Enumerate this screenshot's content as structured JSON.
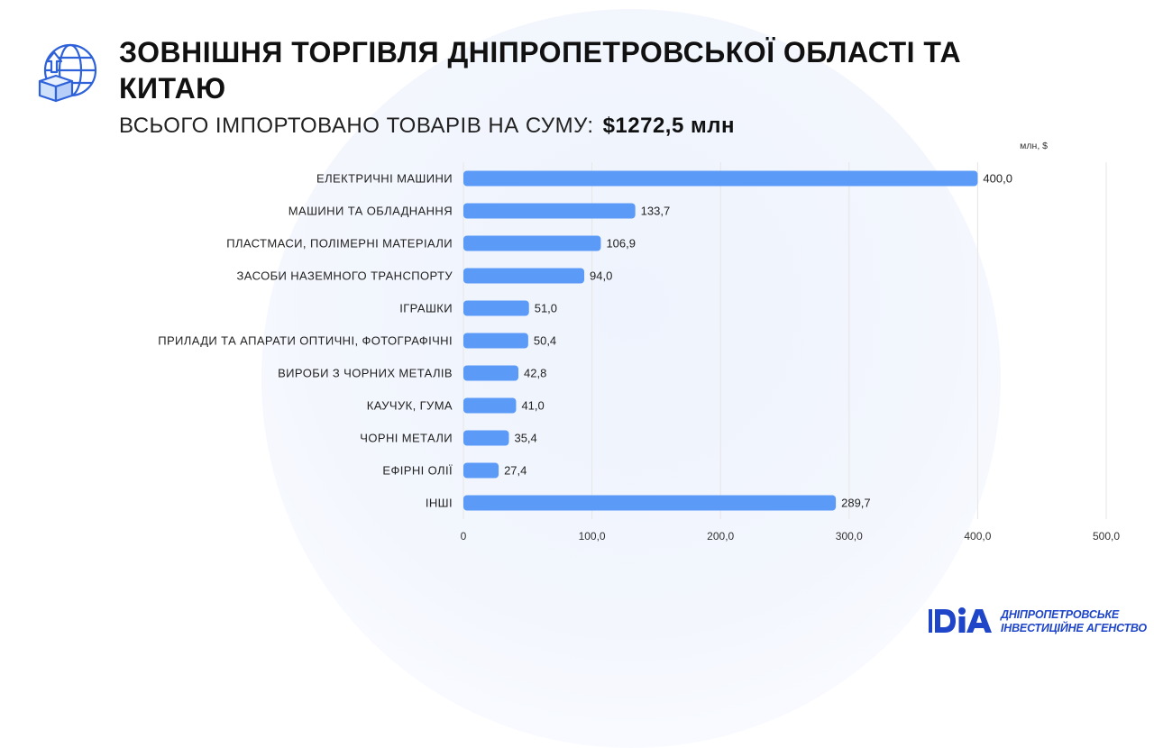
{
  "header": {
    "title": "ЗОВНІШНЯ ТОРГІВЛЯ ДНІПРОПЕТРОВСЬКОЇ ОБЛАСТІ ТА КИТАЮ",
    "subtitle_label": "ВСЬОГО ІМПОРТОВАНО ТОВАРІВ НА СУМУ:",
    "subtitle_value": "$1272,5 млн",
    "icon": "globe-box-upload-icon"
  },
  "brand": {
    "logo_text": "DIA",
    "name_line1": "ДНІПРОПЕТРОВСЬКЕ",
    "name_line2": "ІНВЕСТИЦІЙНЕ АГЕНСТВО"
  },
  "colors": {
    "bar": "#5b9af7",
    "brand": "#1f45c8",
    "grid": "#e6e6e6"
  },
  "chart_data": {
    "type": "bar",
    "orientation": "horizontal",
    "unit_label": "млн, $",
    "categories": [
      "ЕЛЕКТРИЧНІ МАШИНИ",
      "МАШИНИ ТА ОБЛАДНАННЯ",
      "ПЛАСТМАСИ, ПОЛІМЕРНІ МАТЕРІАЛИ",
      "ЗАСОБИ НАЗЕМНОГО ТРАНСПОРТУ",
      "ІГРАШКИ",
      "ПРИЛАДИ ТА АПАРАТИ ОПТИЧНІ, ФОТОГРАФІЧНІ",
      "ВИРОБИ З ЧОРНИХ МЕТАЛІВ",
      "КАУЧУК, ГУМА",
      "ЧОРНІ МЕТАЛИ",
      "ЕФІРНІ ОЛІЇ",
      "ІНШІ"
    ],
    "values": [
      400.0,
      133.7,
      106.9,
      94.0,
      51.0,
      50.4,
      42.8,
      41.0,
      35.4,
      27.4,
      289.7
    ],
    "value_labels": [
      "400,0",
      "133,7",
      "106,9",
      "94,0",
      "51,0",
      "50,4",
      "42,8",
      "41,0",
      "35,4",
      "27,4",
      "289,7"
    ],
    "xlim": [
      0,
      500
    ],
    "xticks": [
      0,
      100,
      200,
      300,
      400,
      500
    ],
    "xtick_labels": [
      "0",
      "100,0",
      "200,0",
      "300,0",
      "400,0",
      "500,0"
    ],
    "grid": "vertical",
    "legend": "none"
  }
}
